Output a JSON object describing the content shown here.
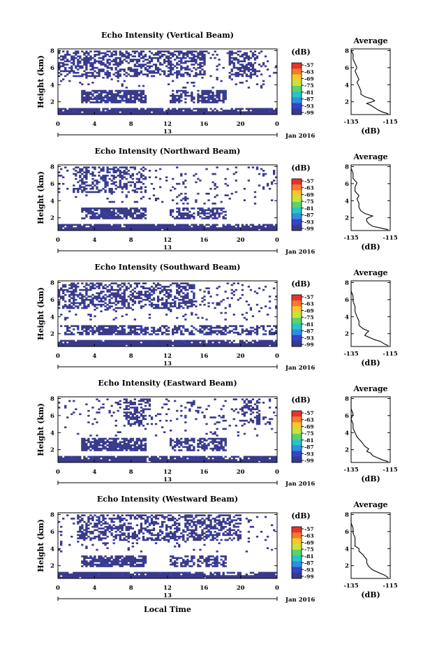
{
  "chart_data": [
    {
      "type": "heatmap",
      "title": "Echo Intensity (Vertical Beam)",
      "ylabel": "Height (km)",
      "yticks": [
        "2",
        "4",
        "6",
        "8"
      ],
      "xticks": [
        "0",
        "4",
        "8",
        "12",
        "16",
        "20",
        "0"
      ],
      "date_label": "13",
      "date_suffix": "Jan 2016",
      "colorbar": {
        "unit": "(dB)",
        "ticks": [
          "-57",
          "-63",
          "-69",
          "-75",
          "-81",
          "-87",
          "-93",
          "-99"
        ]
      },
      "profile": {
        "title": "Average",
        "xticks": [
          "-135",
          "-115"
        ],
        "xlabel": "(dB)",
        "yticks": [
          "2",
          "4",
          "6",
          "8"
        ],
        "xlim": [
          -135,
          -115
        ],
        "ylim": [
          0.5,
          8.2
        ],
        "points": [
          [
            -116,
            0.6
          ],
          [
            -119,
            0.8
          ],
          [
            -121,
            1.0
          ],
          [
            -123,
            1.3
          ],
          [
            -125,
            1.6
          ],
          [
            -127,
            1.8
          ],
          [
            -123,
            2.1
          ],
          [
            -124,
            2.3
          ],
          [
            -128,
            2.6
          ],
          [
            -130,
            2.9
          ],
          [
            -130,
            3.3
          ],
          [
            -131,
            3.8
          ],
          [
            -132,
            4.3
          ],
          [
            -131,
            4.6
          ],
          [
            -132,
            5.1
          ],
          [
            -133,
            5.6
          ],
          [
            -132,
            6.0
          ],
          [
            -133,
            6.5
          ],
          [
            -134,
            7.0
          ],
          [
            -134,
            7.6
          ],
          [
            -135,
            8.0
          ]
        ]
      }
    },
    {
      "type": "heatmap",
      "title": "Echo Intensity (Northward Beam)",
      "ylabel": "Height (km)",
      "yticks": [
        "2",
        "4",
        "6",
        "8"
      ],
      "xticks": [
        "0",
        "4",
        "8",
        "12",
        "16",
        "20",
        "0"
      ],
      "date_label": "13",
      "date_suffix": "Jan 2016",
      "colorbar": {
        "unit": "(dB)",
        "ticks": [
          "-57",
          "-63",
          "-69",
          "-75",
          "-81",
          "-87",
          "-93",
          "-99"
        ]
      },
      "profile": {
        "title": "Average",
        "xticks": [
          "-135",
          "-115"
        ],
        "xlabel": "(dB)",
        "yticks": [
          "2",
          "4",
          "6",
          "8"
        ],
        "xlim": [
          -135,
          -115
        ],
        "ylim": [
          0.5,
          8.2
        ],
        "points": [
          [
            -116,
            0.6
          ],
          [
            -120,
            0.8
          ],
          [
            -124,
            1.0
          ],
          [
            -126,
            1.3
          ],
          [
            -127,
            1.6
          ],
          [
            -127,
            1.9
          ],
          [
            -124,
            2.2
          ],
          [
            -128,
            2.5
          ],
          [
            -130,
            2.8
          ],
          [
            -131,
            3.2
          ],
          [
            -131,
            3.7
          ],
          [
            -132,
            4.2
          ],
          [
            -131,
            4.6
          ],
          [
            -133,
            5.1
          ],
          [
            -133,
            5.6
          ],
          [
            -132,
            6.1
          ],
          [
            -134,
            6.6
          ],
          [
            -134,
            7.2
          ],
          [
            -135,
            7.8
          ]
        ]
      }
    },
    {
      "type": "heatmap",
      "title": "Echo Intensity (Southward Beam)",
      "ylabel": "Height (km)",
      "yticks": [
        "2",
        "4",
        "6",
        "8"
      ],
      "xticks": [
        "0",
        "4",
        "8",
        "12",
        "16",
        "20",
        "0"
      ],
      "date_label": "13",
      "date_suffix": "Jan 2016",
      "colorbar": {
        "unit": "(dB)",
        "ticks": [
          "-57",
          "-63",
          "-69",
          "-75",
          "-81",
          "-87",
          "-93",
          "-99"
        ]
      },
      "profile": {
        "title": "Average",
        "xticks": [
          "-135",
          "-115"
        ],
        "xlabel": "(dB)",
        "yticks": [
          "2",
          "4",
          "6",
          "8"
        ],
        "xlim": [
          -135,
          -115
        ],
        "ylim": [
          0.5,
          8.2
        ],
        "points": [
          [
            -116,
            0.6
          ],
          [
            -118,
            0.8
          ],
          [
            -120,
            1.1
          ],
          [
            -123,
            1.3
          ],
          [
            -126,
            1.6
          ],
          [
            -128,
            1.8
          ],
          [
            -127,
            2.1
          ],
          [
            -126,
            2.3
          ],
          [
            -129,
            2.6
          ],
          [
            -131,
            3.0
          ],
          [
            -131,
            3.5
          ],
          [
            -132,
            4.0
          ],
          [
            -133,
            4.6
          ],
          [
            -133,
            5.2
          ],
          [
            -134,
            5.8
          ],
          [
            -134,
            6.4
          ],
          [
            -135,
            7.0
          ],
          [
            -135,
            7.8
          ]
        ]
      }
    },
    {
      "type": "heatmap",
      "title": "Echo Intensity (Eastward Beam)",
      "ylabel": "Height (km)",
      "yticks": [
        "2",
        "4",
        "6",
        "8"
      ],
      "xticks": [
        "0",
        "4",
        "8",
        "12",
        "16",
        "20",
        "0"
      ],
      "date_label": "13",
      "date_suffix": "Jan 2016",
      "colorbar": {
        "unit": "(dB)",
        "ticks": [
          "-57",
          "-63",
          "-69",
          "-75",
          "-81",
          "-87",
          "-93",
          "-99"
        ]
      },
      "profile": {
        "title": "Average",
        "xticks": [
          "-135",
          "-115"
        ],
        "xlabel": "(dB)",
        "yticks": [
          "2",
          "4",
          "6",
          "8"
        ],
        "xlim": [
          -135,
          -115
        ],
        "ylim": [
          0.5,
          8.2
        ],
        "points": [
          [
            -116,
            0.6
          ],
          [
            -119,
            0.8
          ],
          [
            -121,
            1.0
          ],
          [
            -124,
            1.3
          ],
          [
            -125,
            1.6
          ],
          [
            -127,
            1.8
          ],
          [
            -126,
            2.1
          ],
          [
            -128,
            2.4
          ],
          [
            -129,
            2.7
          ],
          [
            -130,
            3.0
          ],
          [
            -132,
            3.5
          ],
          [
            -133,
            4.0
          ],
          [
            -134,
            4.5
          ],
          [
            -134,
            5.0
          ],
          [
            -135,
            5.6
          ],
          [
            -134,
            6.2
          ],
          [
            -135,
            6.8
          ],
          [
            -135,
            7.5
          ],
          [
            -135,
            8.0
          ]
        ]
      }
    },
    {
      "type": "heatmap",
      "title": "Echo Intensity (Westward Beam)",
      "ylabel": "Height (km)",
      "yticks": [
        "2",
        "4",
        "6",
        "8"
      ],
      "xticks": [
        "0",
        "4",
        "8",
        "12",
        "16",
        "20",
        "0"
      ],
      "date_label": "13",
      "date_suffix": "Jan 2016",
      "xlabel": "Local Time",
      "colorbar": {
        "unit": "(dB)",
        "ticks": [
          "-57",
          "-63",
          "-69",
          "-75",
          "-81",
          "-87",
          "-93",
          "-99"
        ]
      },
      "profile": {
        "title": "Average",
        "xticks": [
          "-135",
          "-115"
        ],
        "xlabel": "(dB)",
        "yticks": [
          "2",
          "4",
          "6",
          "8"
        ],
        "xlim": [
          -135,
          -115
        ],
        "ylim": [
          0.5,
          8.2
        ],
        "points": [
          [
            -116,
            0.6
          ],
          [
            -118,
            0.9
          ],
          [
            -121,
            1.2
          ],
          [
            -124,
            1.5
          ],
          [
            -126,
            1.9
          ],
          [
            -127,
            2.3
          ],
          [
            -127,
            2.7
          ],
          [
            -128,
            3.0
          ],
          [
            -129,
            3.3
          ],
          [
            -131,
            3.7
          ],
          [
            -131,
            4.0
          ],
          [
            -133,
            4.3
          ],
          [
            -133,
            4.8
          ],
          [
            -133,
            5.3
          ],
          [
            -134,
            5.8
          ],
          [
            -134,
            6.4
          ],
          [
            -135,
            7.0
          ],
          [
            -135,
            7.7
          ]
        ]
      }
    }
  ],
  "colormap": [
    "#e8322b",
    "#f87a2c",
    "#f9c62e",
    "#c9e33a",
    "#5fd06c",
    "#27c6c6",
    "#2f8fe0",
    "#3345c9",
    "#3a3a8a"
  ]
}
